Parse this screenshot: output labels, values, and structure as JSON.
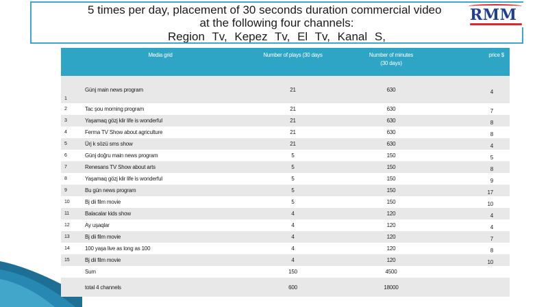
{
  "title": {
    "line1": "5 times per day, placement of 30 seconds duration commercial video",
    "line2": "at the following four channels:",
    "line3": "Region Tv,      Kepez Tv,     El Tv,      Kanal S,"
  },
  "logo": {
    "text": "RMM",
    "colors": {
      "text": "#1f3f8f",
      "swoosh": "#d9272e"
    }
  },
  "table": {
    "headers": {
      "media": "Media grid",
      "plays": "Number of plays (30 days",
      "minutes_l1": "Number of minutes",
      "minutes_l2": "(30 days)",
      "price": "price  $"
    },
    "rows": [
      {
        "num": "1",
        "media": "Günj  main news program",
        "plays": "21",
        "minutes": "630",
        "price": "4"
      },
      {
        "num": "2",
        "media": "Tac şou  morning program",
        "plays": "21",
        "minutes": "630",
        "price": "7"
      },
      {
        "num": "3",
        "media": "Yaşamaq gözj  klir life is wonderful",
        "plays": "21",
        "minutes": "630",
        "price": "8"
      },
      {
        "num": "4",
        "media": "Ferma TV Show about agriculture",
        "plays": "21",
        "minutes": "630",
        "price": "8"
      },
      {
        "num": "5",
        "media": "Ürj  k sözü  sms show",
        "plays": "21",
        "minutes": "630",
        "price": "4"
      },
      {
        "num": "6",
        "media": "Günj  doğru  main news program",
        "plays": "5",
        "minutes": "150",
        "price": "5"
      },
      {
        "num": "7",
        "media": "Renesans  TV Show about arts",
        "plays": "5",
        "minutes": "150",
        "price": "8"
      },
      {
        "num": "8",
        "media": "Yaşamaq gözj  klir life is wonderful",
        "plays": "5",
        "minutes": "150",
        "price": "9"
      },
      {
        "num": "9",
        "media": "Bu gün news program",
        "plays": "5",
        "minutes": "150",
        "price": "17"
      },
      {
        "num": "10",
        "media": "Bj  dii film movie",
        "plays": "5",
        "minutes": "150",
        "price": "10"
      },
      {
        "num": "11",
        "media": "Balacalar  kids show",
        "plays": "4",
        "minutes": "120",
        "price": "4"
      },
      {
        "num": "12",
        "media": "Ay uşaqlar",
        "plays": "4",
        "minutes": "120",
        "price": "4"
      },
      {
        "num": "13",
        "media": "Bj  dii film movie",
        "plays": "4",
        "minutes": "120",
        "price": "7"
      },
      {
        "num": "14",
        "media": "100 yaşa live as long as 100",
        "plays": "4",
        "minutes": "120",
        "price": "8"
      },
      {
        "num": "15",
        "media": "Bj  dii film movie",
        "plays": "4",
        "minutes": "120",
        "price": "10"
      }
    ],
    "sum": {
      "label": "Sum",
      "plays": "150",
      "minutes": "4500"
    },
    "total": {
      "label": "total  4  channels",
      "plays": "600",
      "minutes": "18000"
    }
  },
  "colors": {
    "header_bg": "#2ea5c5",
    "row_shade": "#e8e8e8",
    "title_border": "#3aa6c9"
  }
}
